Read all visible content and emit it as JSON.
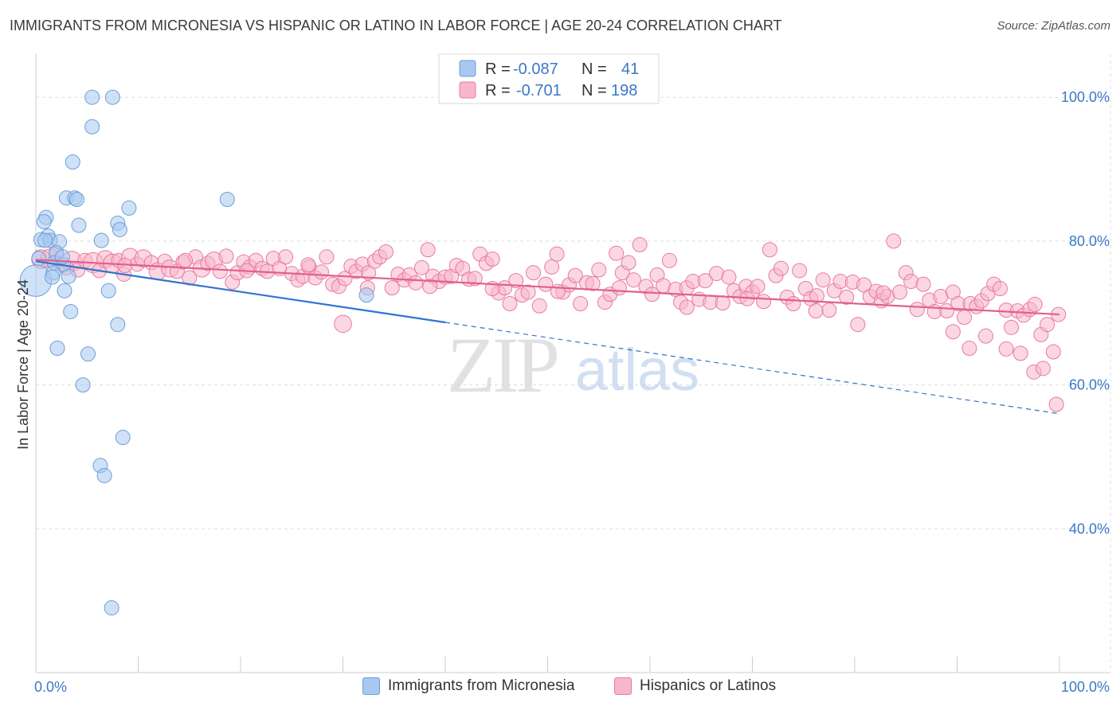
{
  "header": {
    "title": "IMMIGRANTS FROM MICRONESIA VS HISPANIC OR LATINO IN LABOR FORCE | AGE 20-24 CORRELATION CHART",
    "source": "Source: ZipAtlas.com"
  },
  "watermark": {
    "zip": "ZIP",
    "atlas": "atlas"
  },
  "colors": {
    "blue_fill": "#a8c8f0",
    "blue_stroke": "#6a9fd8",
    "blue_line": "#2f74d0",
    "pink_fill": "#f7b6cb",
    "pink_stroke": "#e87aa0",
    "pink_line": "#e0608c",
    "tick_label": "#3a78c8",
    "grid": "#dddddd"
  },
  "legend_stats": {
    "r_label": "R =",
    "n_label": "N =",
    "rows": [
      {
        "series": "blue",
        "r": "-0.087",
        "n": "41"
      },
      {
        "series": "pink",
        "r": "-0.701",
        "n": "198"
      }
    ]
  },
  "chart_data": {
    "type": "scatter",
    "title": "IMMIGRANTS FROM MICRONESIA VS HISPANIC OR LATINO IN LABOR FORCE | AGE 20-24 CORRELATION CHART",
    "xlabel": "",
    "ylabel": "In Labor Force | Age 20-24",
    "xlim": [
      0,
      100
    ],
    "ylim": [
      20,
      106
    ],
    "x_tick_labels": [
      "0.0%",
      "100.0%"
    ],
    "y_ticks": [
      {
        "value": 100,
        "label": "100.0%"
      },
      {
        "value": 80,
        "label": "80.0%"
      },
      {
        "value": 60,
        "label": "60.0%"
      },
      {
        "value": 40,
        "label": "40.0%"
      }
    ],
    "grid": true,
    "legend": "bottom",
    "series": [
      {
        "name": "Immigrants from Micronesia",
        "color": "blue",
        "trend": {
          "x": [
            0,
            40
          ],
          "y": [
            77.2,
            68.7
          ],
          "dashed_to": [
            100,
            56.0
          ]
        },
        "points": [
          [
            0.0,
            74.5,
            2.2
          ],
          [
            5.5,
            100.0,
            1
          ],
          [
            7.5,
            100.0,
            1
          ],
          [
            5.5,
            95.9,
            1
          ],
          [
            3.6,
            91.0,
            1
          ],
          [
            3.0,
            86.0,
            1
          ],
          [
            3.8,
            86.0,
            1
          ],
          [
            4.0,
            85.8,
            1
          ],
          [
            18.7,
            85.8,
            1
          ],
          [
            9.1,
            84.6,
            1
          ],
          [
            1.0,
            83.3,
            1
          ],
          [
            0.8,
            82.7,
            1
          ],
          [
            8.0,
            82.5,
            1
          ],
          [
            4.2,
            82.2,
            1
          ],
          [
            8.2,
            81.6,
            1
          ],
          [
            1.2,
            80.7,
            1
          ],
          [
            0.5,
            80.2,
            1
          ],
          [
            1.4,
            80.1,
            1
          ],
          [
            2.3,
            79.9,
            1
          ],
          [
            6.4,
            80.1,
            1
          ],
          [
            0.3,
            77.6,
            1
          ],
          [
            2.0,
            78.4,
            1
          ],
          [
            1.8,
            77.0,
            1
          ],
          [
            2.7,
            76.7,
            1
          ],
          [
            1.7,
            75.6,
            1
          ],
          [
            1.6,
            75.0,
            1
          ],
          [
            3.2,
            75.1,
            1
          ],
          [
            2.8,
            73.1,
            1
          ],
          [
            7.1,
            73.1,
            1
          ],
          [
            32.3,
            72.5,
            1
          ],
          [
            3.4,
            70.2,
            1
          ],
          [
            8.0,
            68.4,
            1
          ],
          [
            2.1,
            65.1,
            1
          ],
          [
            5.1,
            64.3,
            1
          ],
          [
            4.6,
            60.0,
            1
          ],
          [
            8.5,
            52.7,
            1
          ],
          [
            6.3,
            48.8,
            1
          ],
          [
            6.7,
            47.4,
            1
          ],
          [
            7.4,
            29.0,
            1
          ],
          [
            0.9,
            80.1,
            1
          ],
          [
            2.6,
            77.8,
            1
          ]
        ]
      },
      {
        "name": "Hispanics or Latinos",
        "color": "pink",
        "trend": {
          "x": [
            0,
            100
          ],
          "y": [
            77.4,
            69.8
          ]
        },
        "points": [
          [
            0.5,
            77.5,
            1.3
          ],
          [
            1.4,
            77.6,
            1.3
          ],
          [
            2.0,
            78.2,
            1
          ],
          [
            2.5,
            76.8,
            1
          ],
          [
            3.5,
            77.2,
            1.4
          ],
          [
            4.1,
            76.0,
            1
          ],
          [
            4.8,
            77.3,
            1
          ],
          [
            5.6,
            77.0,
            1.4
          ],
          [
            6.2,
            75.9,
            1
          ],
          [
            6.8,
            77.5,
            1.2
          ],
          [
            7.5,
            76.9,
            1.3
          ],
          [
            8.1,
            77.3,
            1
          ],
          [
            8.6,
            75.4,
            1
          ],
          [
            9.2,
            77.8,
            1.2
          ],
          [
            9.9,
            76.8,
            1
          ],
          [
            10.5,
            77.6,
            1.2
          ],
          [
            11.3,
            77.0,
            1
          ],
          [
            11.9,
            75.8,
            1.2
          ],
          [
            12.6,
            77.2,
            1
          ],
          [
            13.1,
            76.2,
            1.2
          ],
          [
            13.8,
            75.8,
            1
          ],
          [
            14.4,
            77.1,
            1
          ],
          [
            15.0,
            74.9,
            1
          ],
          [
            15.6,
            77.8,
            1
          ],
          [
            16.2,
            76.2,
            1.2
          ],
          [
            16.8,
            76.9,
            1
          ],
          [
            17.4,
            77.3,
            1.2
          ],
          [
            18.0,
            75.8,
            1
          ],
          [
            18.6,
            77.9,
            1
          ],
          [
            19.2,
            74.3,
            1
          ],
          [
            19.7,
            75.6,
            1
          ],
          [
            20.3,
            77.1,
            1
          ],
          [
            20.9,
            76.4,
            1
          ],
          [
            21.5,
            77.3,
            1
          ],
          [
            22.1,
            76.2,
            1
          ],
          [
            22.6,
            75.8,
            1
          ],
          [
            23.2,
            77.6,
            1
          ],
          [
            23.8,
            76.2,
            1
          ],
          [
            24.4,
            77.8,
            1
          ],
          [
            25.0,
            75.5,
            1
          ],
          [
            25.6,
            74.6,
            1
          ],
          [
            26.1,
            75.1,
            1
          ],
          [
            26.7,
            76.4,
            1
          ],
          [
            27.3,
            74.9,
            1
          ],
          [
            27.9,
            75.7,
            1
          ],
          [
            28.4,
            77.8,
            1
          ],
          [
            29.0,
            74.0,
            1
          ],
          [
            29.6,
            73.7,
            1
          ],
          [
            30.2,
            74.8,
            1
          ],
          [
            30.8,
            76.5,
            1
          ],
          [
            31.3,
            75.8,
            1
          ],
          [
            31.9,
            76.8,
            1
          ],
          [
            32.5,
            75.6,
            1
          ],
          [
            33.1,
            77.2,
            1
          ],
          [
            33.6,
            77.8,
            1
          ],
          [
            34.2,
            78.5,
            1
          ],
          [
            34.8,
            73.5,
            1
          ],
          [
            35.4,
            75.4,
            1
          ],
          [
            36.0,
            74.6,
            1
          ],
          [
            36.5,
            75.3,
            1
          ],
          [
            37.1,
            74.2,
            1
          ],
          [
            37.7,
            76.3,
            1
          ],
          [
            38.3,
            78.8,
            1
          ],
          [
            38.8,
            75.1,
            1
          ],
          [
            39.4,
            74.4,
            1
          ],
          [
            40.0,
            75.0,
            1
          ],
          [
            40.6,
            75.1,
            1
          ],
          [
            41.1,
            76.6,
            1
          ],
          [
            41.7,
            76.2,
            1
          ],
          [
            42.3,
            74.7,
            1
          ],
          [
            42.9,
            74.8,
            1
          ],
          [
            43.4,
            78.2,
            1
          ],
          [
            44.0,
            76.9,
            1
          ],
          [
            44.6,
            77.5,
            1
          ],
          [
            45.2,
            72.8,
            1
          ],
          [
            45.8,
            73.5,
            1
          ],
          [
            46.3,
            71.3,
            1
          ],
          [
            46.9,
            74.5,
            1
          ],
          [
            47.5,
            72.5,
            1
          ],
          [
            48.1,
            72.9,
            1
          ],
          [
            48.6,
            75.6,
            1
          ],
          [
            49.2,
            71.0,
            1
          ],
          [
            49.8,
            74.0,
            1
          ],
          [
            50.4,
            76.4,
            1
          ],
          [
            50.9,
            78.2,
            1
          ],
          [
            51.5,
            72.9,
            1
          ],
          [
            52.1,
            73.9,
            1
          ],
          [
            52.7,
            75.2,
            1
          ],
          [
            53.2,
            71.3,
            1
          ],
          [
            53.8,
            74.2,
            1
          ],
          [
            54.4,
            74.1,
            1
          ],
          [
            55.0,
            76.0,
            1
          ],
          [
            55.6,
            71.5,
            1
          ],
          [
            56.1,
            72.6,
            1
          ],
          [
            56.7,
            78.3,
            1
          ],
          [
            57.3,
            75.6,
            1
          ],
          [
            57.9,
            77.0,
            1
          ],
          [
            58.4,
            74.6,
            1
          ],
          [
            59.0,
            79.5,
            1
          ],
          [
            59.6,
            73.7,
            1
          ],
          [
            60.2,
            72.6,
            1
          ],
          [
            60.7,
            75.3,
            1
          ],
          [
            61.3,
            73.8,
            1
          ],
          [
            61.9,
            77.3,
            1
          ],
          [
            62.5,
            73.3,
            1
          ],
          [
            63.0,
            71.5,
            1
          ],
          [
            63.6,
            73.5,
            1
          ],
          [
            64.2,
            74.4,
            1
          ],
          [
            64.8,
            71.9,
            1
          ],
          [
            65.4,
            74.5,
            1
          ],
          [
            65.9,
            71.5,
            1
          ],
          [
            66.5,
            75.5,
            1
          ],
          [
            67.1,
            71.4,
            1
          ],
          [
            67.7,
            75.0,
            1
          ],
          [
            68.2,
            73.1,
            1
          ],
          [
            68.8,
            72.3,
            1
          ],
          [
            69.4,
            73.7,
            1
          ],
          [
            70.0,
            72.9,
            1
          ],
          [
            70.5,
            73.7,
            1
          ],
          [
            71.1,
            71.6,
            1
          ],
          [
            71.7,
            78.8,
            1
          ],
          [
            72.3,
            75.2,
            1
          ],
          [
            72.8,
            76.2,
            1
          ],
          [
            73.4,
            72.2,
            1
          ],
          [
            74.0,
            71.3,
            1
          ],
          [
            74.6,
            75.9,
            1
          ],
          [
            75.2,
            73.4,
            1
          ],
          [
            75.7,
            72.0,
            1
          ],
          [
            76.3,
            72.4,
            1
          ],
          [
            76.9,
            74.6,
            1
          ],
          [
            77.5,
            70.4,
            1
          ],
          [
            78.0,
            73.1,
            1
          ],
          [
            78.6,
            74.4,
            1
          ],
          [
            79.2,
            72.2,
            1
          ],
          [
            79.8,
            74.3,
            1
          ],
          [
            80.3,
            68.4,
            1
          ],
          [
            80.9,
            73.9,
            1
          ],
          [
            81.5,
            72.3,
            1
          ],
          [
            82.1,
            73.0,
            1
          ],
          [
            82.6,
            71.7,
            1
          ],
          [
            83.2,
            72.3,
            1
          ],
          [
            83.8,
            80.0,
            1
          ],
          [
            84.4,
            72.9,
            1
          ],
          [
            85.0,
            75.6,
            1
          ],
          [
            85.5,
            74.4,
            1
          ],
          [
            86.1,
            70.5,
            1
          ],
          [
            86.7,
            74.0,
            1
          ],
          [
            87.3,
            71.8,
            1
          ],
          [
            87.8,
            70.2,
            1
          ],
          [
            88.4,
            72.3,
            1
          ],
          [
            89.0,
            70.3,
            1
          ],
          [
            89.6,
            72.9,
            1
          ],
          [
            90.1,
            71.3,
            1
          ],
          [
            90.7,
            69.4,
            1
          ],
          [
            91.3,
            71.3,
            1
          ],
          [
            91.9,
            70.9,
            1
          ],
          [
            92.4,
            71.7,
            1
          ],
          [
            93.0,
            72.7,
            1
          ],
          [
            93.6,
            74.0,
            1
          ],
          [
            94.2,
            73.4,
            1
          ],
          [
            94.8,
            70.4,
            1
          ],
          [
            95.3,
            68.0,
            1
          ],
          [
            95.9,
            70.3,
            1
          ],
          [
            96.5,
            69.7,
            1
          ],
          [
            97.1,
            70.5,
            1
          ],
          [
            97.6,
            71.2,
            1
          ],
          [
            98.2,
            67.0,
            1
          ],
          [
            98.8,
            68.4,
            1
          ],
          [
            99.4,
            64.6,
            1
          ],
          [
            99.9,
            69.8,
            1
          ],
          [
            96.2,
            64.4,
            1
          ],
          [
            97.5,
            61.8,
            1
          ],
          [
            98.4,
            62.3,
            1
          ],
          [
            99.7,
            57.3,
            1
          ],
          [
            94.8,
            65.0,
            1
          ],
          [
            92.8,
            66.8,
            1
          ],
          [
            91.2,
            65.1,
            1
          ],
          [
            89.6,
            67.4,
            1
          ],
          [
            30.0,
            68.5,
            1.2
          ],
          [
            82.8,
            72.8,
            1
          ],
          [
            76.2,
            70.3,
            1
          ],
          [
            69.5,
            72.0,
            1
          ],
          [
            63.6,
            70.8,
            1
          ],
          [
            57.0,
            73.5,
            1
          ],
          [
            51.0,
            73.0,
            1
          ],
          [
            44.6,
            73.4,
            1
          ],
          [
            38.5,
            73.7,
            1
          ],
          [
            32.4,
            73.5,
            1
          ],
          [
            26.6,
            76.7,
            1
          ],
          [
            20.6,
            75.9,
            1
          ],
          [
            14.6,
            77.3,
            1
          ],
          [
            8.7,
            76.6,
            1
          ],
          [
            3.0,
            76.3,
            1
          ]
        ]
      }
    ]
  }
}
